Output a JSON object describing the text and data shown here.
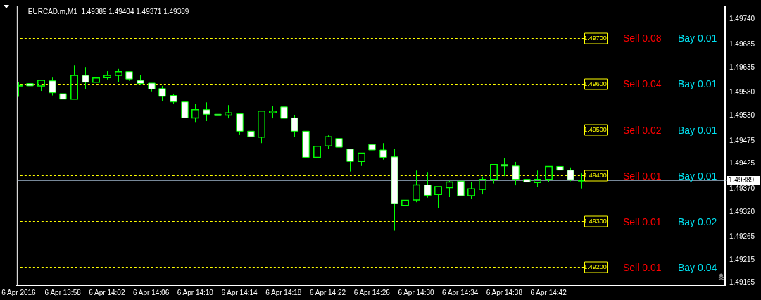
{
  "chart_data": {
    "type": "candlestick",
    "title": "EURCAD.m,M1  1.49389 1.49404 1.49371 1.49389",
    "x": [
      "2016-04-06T13:54",
      "2016-04-06T13:55",
      "2016-04-06T13:56",
      "2016-04-06T13:57",
      "2016-04-06T13:58",
      "2016-04-06T13:59",
      "2016-04-06T14:00",
      "2016-04-06T14:01",
      "2016-04-06T14:02",
      "2016-04-06T14:03",
      "2016-04-06T14:04",
      "2016-04-06T14:05",
      "2016-04-06T14:06",
      "2016-04-06T14:07",
      "2016-04-06T14:08",
      "2016-04-06T14:09",
      "2016-04-06T14:10",
      "2016-04-06T14:11",
      "2016-04-06T14:12",
      "2016-04-06T14:13",
      "2016-04-06T14:14",
      "2016-04-06T14:15",
      "2016-04-06T14:16",
      "2016-04-06T14:17",
      "2016-04-06T14:18",
      "2016-04-06T14:19",
      "2016-04-06T14:20",
      "2016-04-06T14:21",
      "2016-04-06T14:22",
      "2016-04-06T14:23",
      "2016-04-06T14:24",
      "2016-04-06T14:25",
      "2016-04-06T14:26",
      "2016-04-06T14:27",
      "2016-04-06T14:28",
      "2016-04-06T14:29",
      "2016-04-06T14:30",
      "2016-04-06T14:31",
      "2016-04-06T14:32",
      "2016-04-06T14:33",
      "2016-04-06T14:34",
      "2016-04-06T14:35",
      "2016-04-06T14:36",
      "2016-04-06T14:37",
      "2016-04-06T14:38",
      "2016-04-06T14:39",
      "2016-04-06T14:40",
      "2016-04-06T14:41",
      "2016-04-06T14:42",
      "2016-04-06T14:43",
      "2016-04-06T14:44",
      "2016-04-06T14:45"
    ],
    "series": [
      {
        "color": "#00ff00",
        "colors": [
          "#00ff00",
          "#ffffff",
          "#00ff00",
          "#ffffff",
          "#ffffff",
          "#00ff00",
          "#ffffff",
          "#00ff00",
          "#00ff00",
          "#00ff00",
          "#ffffff",
          "#ffffff",
          "#ffffff",
          "#ffffff",
          "#ffffff",
          "#ffffff",
          "#00ff00",
          "#ffffff",
          "#ffffff",
          "#00ff00",
          "#ffffff",
          "#ffffff",
          "#00ff00",
          "#00ff00",
          "#ffffff",
          "#ffffff",
          "#ffffff",
          "#00ff00",
          "#00ff00",
          "#ffffff",
          "#ffffff",
          "#00ff00",
          "#ffffff",
          "#ffffff",
          "#ffffff",
          "#00ff00",
          "#00ff00",
          "#ffffff",
          "#00ff00",
          "#00ff00",
          "#ffffff",
          "#00ff00",
          "#00ff00",
          "#00ff00",
          "#ffffff",
          "#ffffff",
          "#ffffff",
          "#00ff00",
          "#00ff00",
          "#ffffff",
          "#ffffff",
          "#00ff00"
        ],
        "ohlc": [
          [
            1.49595,
            1.49603,
            1.49571,
            1.49597
          ],
          [
            1.496,
            1.49604,
            1.49578,
            1.49595
          ],
          [
            1.49595,
            1.49609,
            1.49584,
            1.49607
          ],
          [
            1.49606,
            1.49613,
            1.49574,
            1.4958
          ],
          [
            1.49578,
            1.49581,
            1.49559,
            1.49566
          ],
          [
            1.49566,
            1.49639,
            1.49566,
            1.49618
          ],
          [
            1.49618,
            1.49636,
            1.49588,
            1.49603
          ],
          [
            1.49603,
            1.49626,
            1.49591,
            1.49612
          ],
          [
            1.49613,
            1.49627,
            1.49609,
            1.49618
          ],
          [
            1.49618,
            1.49632,
            1.49603,
            1.49626
          ],
          [
            1.49626,
            1.49627,
            1.49606,
            1.4961
          ],
          [
            1.49607,
            1.49618,
            1.49597,
            1.496
          ],
          [
            1.49601,
            1.49603,
            1.49583,
            1.49588
          ],
          [
            1.49589,
            1.49595,
            1.49562,
            1.49572
          ],
          [
            1.49574,
            1.49578,
            1.49556,
            1.4956
          ],
          [
            1.4956,
            1.4956,
            1.49525,
            1.49525
          ],
          [
            1.49525,
            1.49556,
            1.49516,
            1.49543
          ],
          [
            1.49543,
            1.49559,
            1.49518,
            1.49533
          ],
          [
            1.49533,
            1.4954,
            1.49516,
            1.4953
          ],
          [
            1.49531,
            1.49553,
            1.49524,
            1.49536
          ],
          [
            1.49534,
            1.49534,
            1.49489,
            1.49496
          ],
          [
            1.49496,
            1.49505,
            1.49469,
            1.49484
          ],
          [
            1.49483,
            1.4954,
            1.4947,
            1.4954
          ],
          [
            1.49536,
            1.49551,
            1.49524,
            1.4954
          ],
          [
            1.49549,
            1.49556,
            1.4951,
            1.49524
          ],
          [
            1.49525,
            1.49531,
            1.49484,
            1.49496
          ],
          [
            1.49496,
            1.49505,
            1.49439,
            1.49439
          ],
          [
            1.49439,
            1.49477,
            1.49439,
            1.49463
          ],
          [
            1.49464,
            1.49487,
            1.49457,
            1.49484
          ],
          [
            1.4948,
            1.49493,
            1.49432,
            1.49461
          ],
          [
            1.49457,
            1.49457,
            1.49408,
            1.4943
          ],
          [
            1.4943,
            1.49449,
            1.4942,
            1.49448
          ],
          [
            1.49467,
            1.4949,
            1.49452,
            1.49455
          ],
          [
            1.49455,
            1.4947,
            1.49434,
            1.49439
          ],
          [
            1.4944,
            1.49458,
            1.49279,
            1.49338
          ],
          [
            1.49334,
            1.49355,
            1.49303,
            1.49345
          ],
          [
            1.49346,
            1.4941,
            1.49341,
            1.49379
          ],
          [
            1.49379,
            1.49407,
            1.49351,
            1.49356
          ],
          [
            1.49358,
            1.49375,
            1.49329,
            1.49375
          ],
          [
            1.49373,
            1.49388,
            1.49352,
            1.49385
          ],
          [
            1.49387,
            1.49388,
            1.49355,
            1.49355
          ],
          [
            1.49355,
            1.49385,
            1.49349,
            1.4937
          ],
          [
            1.49369,
            1.49397,
            1.49358,
            1.49391
          ],
          [
            1.49391,
            1.49423,
            1.49382,
            1.49423
          ],
          [
            1.49423,
            1.49437,
            1.49398,
            1.4942
          ],
          [
            1.4942,
            1.49429,
            1.49378,
            1.49391
          ],
          [
            1.49391,
            1.49399,
            1.49378,
            1.49385
          ],
          [
            1.49384,
            1.4941,
            1.49375,
            1.49391
          ],
          [
            1.49391,
            1.49419,
            1.49385,
            1.49419
          ],
          [
            1.49419,
            1.49422,
            1.49391,
            1.49411
          ],
          [
            1.49411,
            1.49417,
            1.49387,
            1.4939
          ],
          [
            1.49389,
            1.49404,
            1.49371,
            1.49389
          ]
        ]
      }
    ],
    "xlim": [
      "2016-04-06T13:53:50",
      "2016-04-06T14:58"
    ],
    "xticks": [
      {
        "value": "2016-04-06T13:54",
        "label": "6 Apr 2016"
      },
      {
        "value": "2016-04-06T13:58",
        "label": "6 Apr 13:58"
      },
      {
        "value": "2016-04-06T14:02",
        "label": "6 Apr 14:02"
      },
      {
        "value": "2016-04-06T14:06",
        "label": "6 Apr 14:06"
      },
      {
        "value": "2016-04-06T14:10",
        "label": "6 Apr 14:10"
      },
      {
        "value": "2016-04-06T14:14",
        "label": "6 Apr 14:14"
      },
      {
        "value": "2016-04-06T14:18",
        "label": "6 Apr 14:18"
      },
      {
        "value": "2016-04-06T14:22",
        "label": "6 Apr 14:22"
      },
      {
        "value": "2016-04-06T14:26",
        "label": "6 Apr 14:26"
      },
      {
        "value": "2016-04-06T14:30",
        "label": "6 Apr 14:30"
      },
      {
        "value": "2016-04-06T14:34",
        "label": "6 Apr 14:34"
      },
      {
        "value": "2016-04-06T14:38",
        "label": "6 Apr 14:38"
      },
      {
        "value": "2016-04-06T14:42",
        "label": "6 Apr 14:42"
      }
    ],
    "ylim": [
      1.4916,
      1.4977
    ],
    "yticks": [
      {
        "value": 1.4974,
        "label": "1.49740"
      },
      {
        "value": 1.49685,
        "label": "1.49685"
      },
      {
        "value": 1.49635,
        "label": "1.49635"
      },
      {
        "value": 1.4958,
        "label": "1.49580"
      },
      {
        "value": 1.4953,
        "label": "1.49530"
      },
      {
        "value": 1.49475,
        "label": "1.49475"
      },
      {
        "value": 1.49425,
        "label": "1.49425"
      },
      {
        "value": 1.4937,
        "label": "1.49370"
      },
      {
        "value": 1.4932,
        "label": "1.49320"
      },
      {
        "value": 1.49265,
        "label": "1.49265"
      },
      {
        "value": 1.49215,
        "label": "1.49215"
      },
      {
        "value": 1.49165,
        "label": "1.49165"
      }
    ],
    "ref_lines": [
      {
        "axis": "y",
        "value": 1.497,
        "label": "1.49700",
        "color": "#ffff00",
        "line_style": "dashed"
      },
      {
        "axis": "y",
        "value": 1.496,
        "label": "1.49600",
        "color": "#ffff00",
        "line_style": "dashed"
      },
      {
        "axis": "y",
        "value": 1.495,
        "label": "1.49500",
        "color": "#ffff00",
        "line_style": "dashed"
      },
      {
        "axis": "y",
        "value": 1.494,
        "label": "1.49400",
        "color": "#ffff00",
        "line_style": "dashed"
      },
      {
        "axis": "y",
        "value": 1.493,
        "label": "1.49300",
        "color": "#ffff00",
        "line_style": "dashed"
      },
      {
        "axis": "y",
        "value": 1.492,
        "label": "1.49200",
        "color": "#ffff00",
        "line_style": "dashed"
      },
      {
        "axis": "y",
        "value": 1.49389,
        "label": "1.49389",
        "color": "#778899",
        "line_style": "solid"
      }
    ],
    "annotations": [
      "Sell 0.08",
      "Bay 0.01",
      "Sell 0.04",
      "Bay 0.01",
      "Sell 0.02",
      "Bay 0.01",
      "Sell 0.01",
      "Bay 0.01",
      "Sell 0.01",
      "Bay 0.02",
      "Sell 0.01",
      "Bay 0.04"
    ],
    "legend": false
  }
}
